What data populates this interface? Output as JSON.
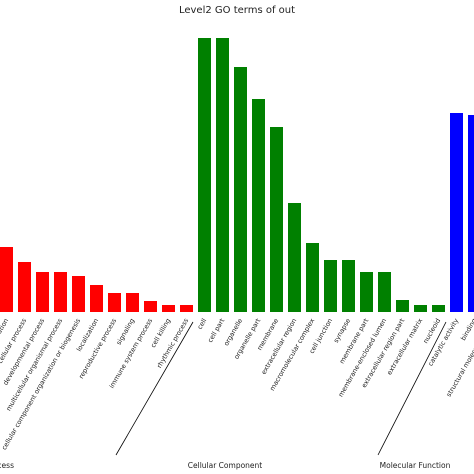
{
  "chart_data": {
    "type": "bar",
    "title": "Level2 GO terms of out",
    "ylim": [
      0,
      280
    ],
    "groups": [
      {
        "name": "Biological Process",
        "color": "#ff0000",
        "categories": [
          "biological regulation",
          "cellular process",
          "developmental process",
          "multicellular organismal process",
          "cellular component organization or biogenesis",
          "localization",
          "reproductive process",
          "signaling",
          "immune system process",
          "cell killing",
          "rhythmic process"
        ],
        "values": [
          65,
          50,
          40,
          40,
          36,
          27,
          19,
          19,
          11,
          7,
          7
        ]
      },
      {
        "name": "Cellular Component",
        "color": "#008000",
        "categories": [
          "cell",
          "cell part",
          "organelle",
          "organelle part",
          "membrane",
          "extracellular region",
          "macromolecular complex",
          "cell junction",
          "synapse",
          "membrane part",
          "membrane-enclosed lumen",
          "extracellular region part",
          "extracellular matrix",
          "nucleoid"
        ],
        "values": [
          274,
          274,
          245,
          213,
          185,
          109,
          69,
          52,
          52,
          40,
          40,
          12,
          7,
          7
        ]
      },
      {
        "name": "Molecular Function",
        "color": "#0000ff",
        "categories": [
          "catalytic activity",
          "binding",
          "structural molecule activity"
        ],
        "values": [
          199,
          197,
          null
        ]
      }
    ]
  }
}
